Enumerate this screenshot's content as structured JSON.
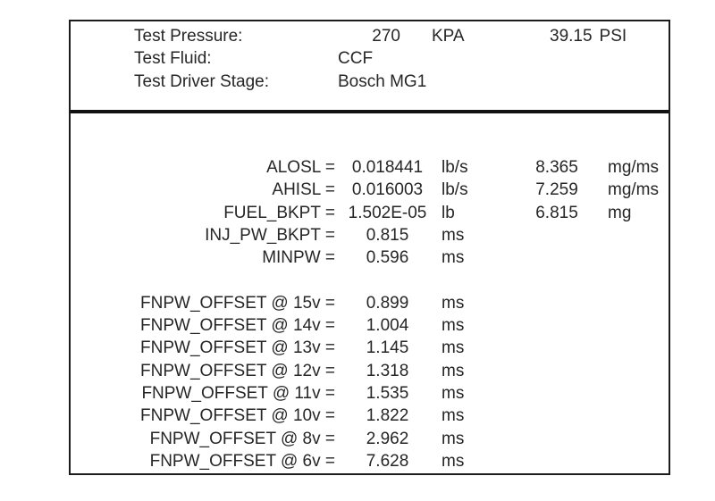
{
  "colors": {
    "text": "#262626",
    "panel_border": "#1c1c1c",
    "divider": "#111111",
    "background": "#ffffff"
  },
  "header": {
    "rows": [
      {
        "label": "Test Pressure:",
        "value": "270",
        "unit": "KPA",
        "value2": "39.15",
        "unit2": "PSI"
      },
      {
        "label": "Test Fluid:",
        "value": "CCF",
        "unit": "",
        "value2": "",
        "unit2": ""
      },
      {
        "label": "Test Driver Stage:",
        "value": "Bosch MG1",
        "unit": "",
        "value2": "",
        "unit2": ""
      }
    ]
  },
  "parameters": [
    {
      "label": "ALOSL =",
      "value": "0.018441",
      "unit": "lb/s",
      "value2": "8.365",
      "unit2": "mg/ms"
    },
    {
      "label": "AHISL =",
      "value": "0.016003",
      "unit": "lb/s",
      "value2": "7.259",
      "unit2": "mg/ms"
    },
    {
      "label": "FUEL_BKPT =",
      "value": "1.502E-05",
      "unit": "lb",
      "value2": "6.815",
      "unit2": "mg"
    },
    {
      "label": "INJ_PW_BKPT =",
      "value": "0.815",
      "unit": "ms",
      "value2": "",
      "unit2": ""
    },
    {
      "label": "MINPW =",
      "value": "0.596",
      "unit": "ms",
      "value2": "",
      "unit2": ""
    }
  ],
  "fnpw_offsets": [
    {
      "label": "FNPW_OFFSET @ 15v =",
      "value": "0.899",
      "unit": "ms"
    },
    {
      "label": "FNPW_OFFSET @ 14v =",
      "value": "1.004",
      "unit": "ms"
    },
    {
      "label": "FNPW_OFFSET @ 13v =",
      "value": "1.145",
      "unit": "ms"
    },
    {
      "label": "FNPW_OFFSET @ 12v =",
      "value": "1.318",
      "unit": "ms"
    },
    {
      "label": "FNPW_OFFSET @ 11v =",
      "value": "1.535",
      "unit": "ms"
    },
    {
      "label": "FNPW_OFFSET @ 10v =",
      "value": "1.822",
      "unit": "ms"
    },
    {
      "label": "FNPW_OFFSET @ 8v =",
      "value": "2.962",
      "unit": "ms"
    },
    {
      "label": "FNPW_OFFSET @ 6v =",
      "value": "7.628",
      "unit": "ms"
    }
  ]
}
